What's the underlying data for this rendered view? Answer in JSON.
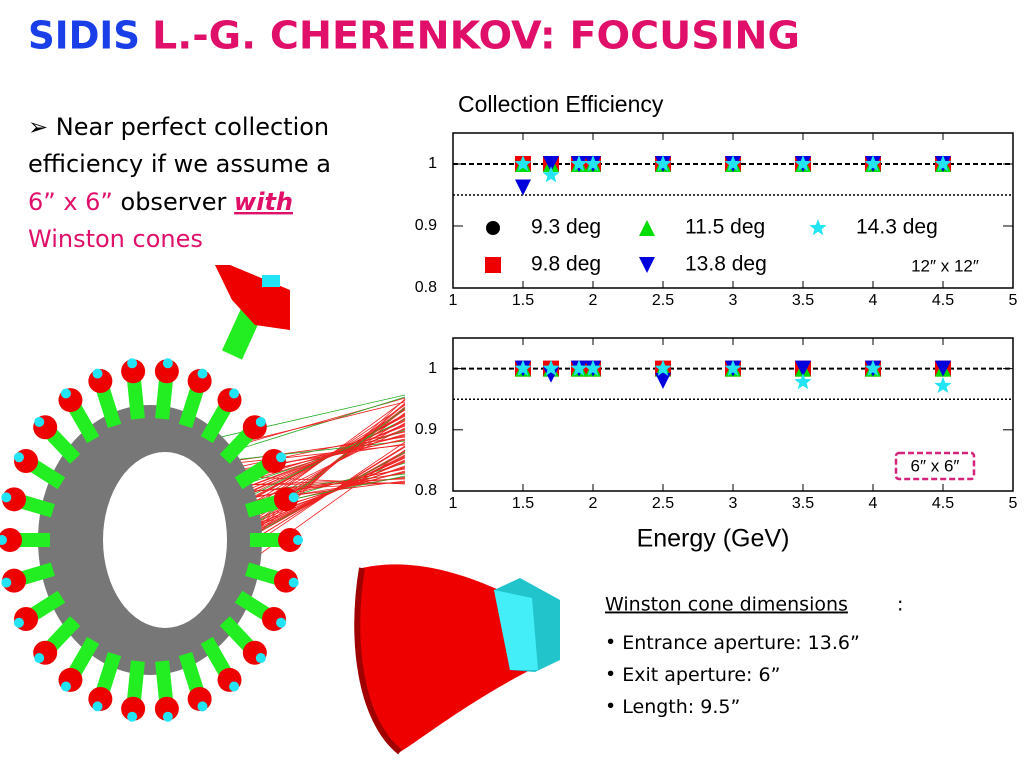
{
  "header": {
    "title_blue": "SIDIS",
    "title_red": "L.-G. CHERENKOV: FOCUSING"
  },
  "bullet": {
    "text": "Near perfect collection efficiency if we assume a",
    "size": "6” x 6”",
    "text2": "observer",
    "emphasis": "with",
    "tail": "Winston cones"
  },
  "dimensions": {
    "heading": "Winston cone dimensions",
    "items": [
      "Entrance aperture: 13.6”",
      "Exit aperture: 6”",
      "Length: 9.5”"
    ]
  },
  "chart_data": [
    {
      "type": "scatter",
      "title": "Collection Efficiency",
      "x": [
        1.5,
        1.7,
        1.9,
        2.0,
        2.5,
        3,
        3.5,
        4,
        4.5
      ],
      "series": [
        {
          "name": "9.3 deg",
          "color": "#000000",
          "marker": "circle",
          "values": [
            1,
            1,
            1,
            1,
            1,
            1,
            1,
            1,
            1
          ]
        },
        {
          "name": "9.8 deg",
          "color": "#ee0000",
          "marker": "square",
          "values": [
            1,
            1,
            1,
            1,
            1,
            1,
            1,
            1,
            1
          ]
        },
        {
          "name": "11.5 deg",
          "color": "#00dd00",
          "marker": "triangle-up",
          "values": [
            1,
            1,
            1,
            1,
            1,
            1,
            1,
            1,
            1
          ]
        },
        {
          "name": "13.8 deg",
          "color": "#0000dd",
          "marker": "triangle-down",
          "values": [
            0.962,
            1,
            1,
            1,
            1,
            1,
            1,
            1,
            1
          ]
        },
        {
          "name": "14.3 deg",
          "color": "#22e4f4",
          "marker": "star",
          "values": [
            1,
            0.982,
            1,
            1,
            1,
            1,
            1,
            1,
            1
          ]
        }
      ],
      "xlim": [
        1,
        5
      ],
      "xticks": [
        1,
        1.5,
        2,
        2.5,
        3,
        3.5,
        4,
        4.5,
        5
      ],
      "ylim": [
        0.8,
        1.05
      ],
      "yticks": [
        0.8,
        0.9,
        1
      ],
      "reference_lines": [
        {
          "value": 1,
          "style": "dashed"
        },
        {
          "value": 0.95,
          "style": "dotted"
        }
      ],
      "legend": "lower left",
      "annotation": "12″ x 12″",
      "annotation_box": false
    },
    {
      "type": "scatter",
      "x_label": "Energy (GeV)",
      "x": [
        1.5,
        1.7,
        1.9,
        2.0,
        2.5,
        3,
        3.5,
        4,
        4.5
      ],
      "series": [
        {
          "color": "#000000",
          "marker": "circle",
          "values": [
            1,
            1,
            1,
            1,
            1,
            1,
            1,
            1,
            1
          ]
        },
        {
          "color": "#ee0000",
          "marker": "square",
          "values": [
            1,
            1,
            1,
            1,
            1,
            1,
            1,
            1,
            1
          ]
        },
        {
          "color": "#00dd00",
          "marker": "triangle-up",
          "values": [
            1,
            1,
            1,
            1,
            1,
            1,
            1,
            1,
            1
          ]
        },
        {
          "color": "#0000dd",
          "marker": "triangle-down",
          "values": [
            1,
            0.99,
            1,
            1,
            0.98,
            1,
            1,
            1,
            1
          ]
        },
        {
          "color": "#22e4f4",
          "marker": "star",
          "values": [
            1,
            1,
            1,
            1,
            1,
            1,
            0.978,
            1,
            0.972
          ]
        }
      ],
      "xlim": [
        1,
        5
      ],
      "xticks": [
        1,
        1.5,
        2,
        2.5,
        3,
        3.5,
        4,
        4.5,
        5
      ],
      "ylim": [
        0.8,
        1.05
      ],
      "yticks": [
        0.8,
        0.9,
        1
      ],
      "reference_lines": [
        {
          "value": 1,
          "style": "dashed"
        },
        {
          "value": 0.95,
          "style": "dotted"
        }
      ],
      "legend": false,
      "annotation": "6″ x 6″",
      "annotation_box": "#d4237a"
    }
  ]
}
